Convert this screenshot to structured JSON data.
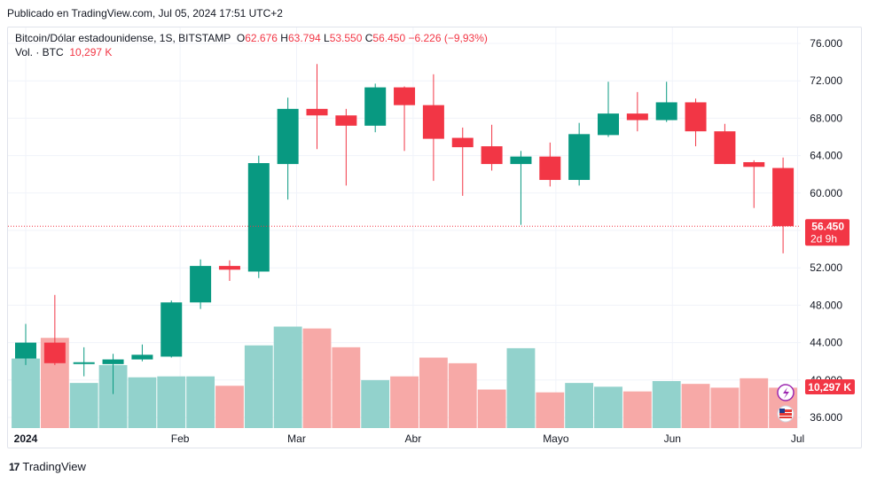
{
  "header": {
    "published": "Publicado en TradingView.com, Jul 05, 2024 17:51 UTC+2"
  },
  "legend": {
    "symbol": "Bitcoin/Dólar estadounidense, 1S, BITSTAMP",
    "o_label": "O",
    "o_value": "62.676",
    "h_label": "H",
    "h_value": "63.794",
    "l_label": "L",
    "l_value": "53.550",
    "c_label": "C",
    "c_value": "56.450",
    "change": "−6.226 (−9,93%)",
    "vol_label": "Vol. · BTC",
    "vol_value": "10,297 K"
  },
  "price_marker": {
    "value": "56.450",
    "countdown": "2d 9h",
    "color": "#f23645"
  },
  "volume_marker": {
    "value": "10,297 K",
    "color": "#f23645"
  },
  "footer": {
    "brand": "TradingView",
    "logo": "17"
  },
  "colors": {
    "up": "#089981",
    "down": "#f23645",
    "vol_up": "#92d2cc",
    "vol_down": "#f7a9a7"
  },
  "chart_data": {
    "type": "candlestick",
    "y_axis": {
      "min": 34000,
      "max": 77000,
      "ticks": [
        "76.000",
        "72.000",
        "68.000",
        "64.000",
        "60.000",
        "56.000",
        "52.000",
        "48.000",
        "44.000",
        "40.000",
        "36.000"
      ],
      "tick_values": [
        76000,
        72000,
        68000,
        64000,
        60000,
        56000,
        52000,
        48000,
        44000,
        40000,
        36000
      ],
      "grid": true
    },
    "x_axis": {
      "labels": [
        "2024",
        "Feb",
        "Mar",
        "Abr",
        "Mayo",
        "Jun",
        "Jul"
      ],
      "label_index": [
        0.0,
        5.3,
        9.3,
        13.3,
        18.2,
        22.2,
        26.5
      ]
    },
    "candles": [
      {
        "o": 42300,
        "h": 46000,
        "l": 41600,
        "c": 44000
      },
      {
        "o": 44000,
        "h": 49100,
        "l": 41600,
        "c": 41800
      },
      {
        "o": 41800,
        "h": 43500,
        "l": 40400,
        "c": 41900
      },
      {
        "o": 41700,
        "h": 42800,
        "l": 38500,
        "c": 42200
      },
      {
        "o": 42200,
        "h": 43800,
        "l": 42000,
        "c": 42700
      },
      {
        "o": 42500,
        "h": 48500,
        "l": 42400,
        "c": 48300
      },
      {
        "o": 48300,
        "h": 52900,
        "l": 47600,
        "c": 52200
      },
      {
        "o": 52200,
        "h": 52800,
        "l": 50600,
        "c": 51800
      },
      {
        "o": 51600,
        "h": 64000,
        "l": 50900,
        "c": 63200
      },
      {
        "o": 63100,
        "h": 70200,
        "l": 59300,
        "c": 69000
      },
      {
        "o": 69000,
        "h": 73800,
        "l": 64700,
        "c": 68300
      },
      {
        "o": 68300,
        "h": 69000,
        "l": 60800,
        "c": 67200
      },
      {
        "o": 67200,
        "h": 71700,
        "l": 66500,
        "c": 71300
      },
      {
        "o": 71300,
        "h": 71400,
        "l": 64500,
        "c": 69400
      },
      {
        "o": 69400,
        "h": 72700,
        "l": 61300,
        "c": 65800
      },
      {
        "o": 65900,
        "h": 67000,
        "l": 59700,
        "c": 64900
      },
      {
        "o": 65000,
        "h": 67300,
        "l": 62400,
        "c": 63100
      },
      {
        "o": 63100,
        "h": 64500,
        "l": 56600,
        "c": 63900
      },
      {
        "o": 63900,
        "h": 65400,
        "l": 60700,
        "c": 61400
      },
      {
        "o": 61400,
        "h": 67500,
        "l": 60800,
        "c": 66300
      },
      {
        "o": 66200,
        "h": 71900,
        "l": 66000,
        "c": 68500
      },
      {
        "o": 68500,
        "h": 70800,
        "l": 66600,
        "c": 67800
      },
      {
        "o": 67800,
        "h": 71900,
        "l": 67600,
        "c": 69700
      },
      {
        "o": 69700,
        "h": 70100,
        "l": 65000,
        "c": 66600
      },
      {
        "o": 66600,
        "h": 67400,
        "l": 63100,
        "c": 63100
      },
      {
        "o": 63300,
        "h": 63500,
        "l": 58400,
        "c": 62800
      },
      {
        "o": 62676,
        "h": 63794,
        "l": 53550,
        "c": 56450
      }
    ],
    "volumes": [
      0.74,
      0.96,
      0.48,
      0.67,
      0.54,
      0.55,
      0.55,
      0.45,
      0.88,
      1.08,
      1.06,
      0.86,
      0.51,
      0.55,
      0.75,
      0.69,
      0.41,
      0.85,
      0.38,
      0.48,
      0.44,
      0.39,
      0.5,
      0.47,
      0.43,
      0.53,
      0.43
    ]
  }
}
